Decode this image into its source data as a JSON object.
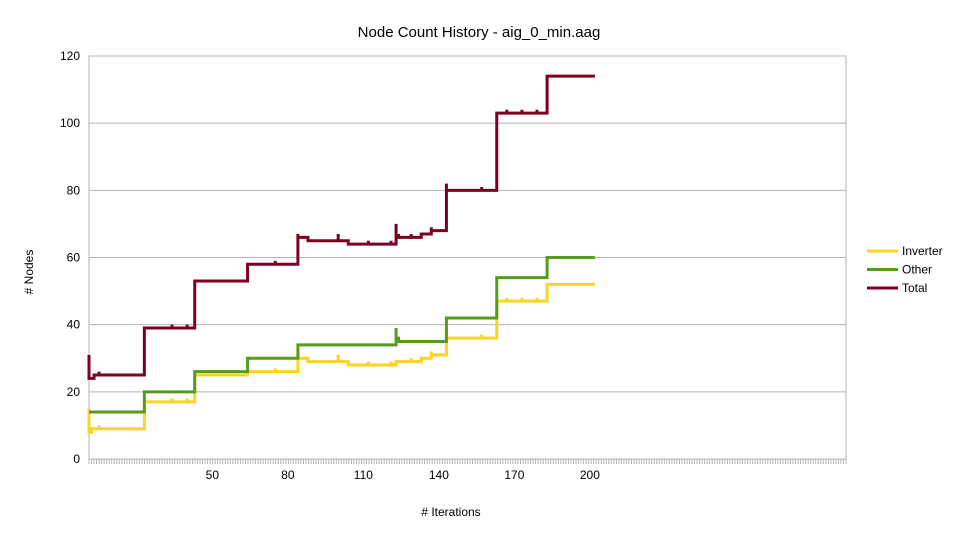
{
  "chart_data": {
    "type": "line",
    "title": "Node Count History  -  aig_0_min.aag",
    "xlabel": "# Iterations",
    "ylabel": "# Nodes",
    "xlim": [
      1,
      201
    ],
    "ylim": [
      0,
      120
    ],
    "x_tick_labels": [
      50,
      80,
      110,
      140,
      170,
      200
    ],
    "y_tick_labels": [
      0,
      20,
      40,
      60,
      80,
      100,
      120
    ],
    "grid": "horizontal",
    "legend_position": "right",
    "step": true,
    "series": [
      {
        "name": "Inverter",
        "color": "#ffd320",
        "points": [
          [
            1,
            15
          ],
          [
            1,
            8
          ],
          [
            2,
            8
          ],
          [
            2,
            9
          ],
          [
            5,
            9
          ],
          [
            5,
            10
          ],
          [
            5,
            9
          ],
          [
            23,
            9
          ],
          [
            23,
            17
          ],
          [
            34,
            17
          ],
          [
            34,
            18
          ],
          [
            34,
            17
          ],
          [
            40,
            17
          ],
          [
            40,
            18
          ],
          [
            40,
            17
          ],
          [
            43,
            17
          ],
          [
            43,
            25
          ],
          [
            64,
            25
          ],
          [
            64,
            26
          ],
          [
            75,
            26
          ],
          [
            75,
            27
          ],
          [
            75,
            26
          ],
          [
            84,
            26
          ],
          [
            84,
            31
          ],
          [
            84,
            30
          ],
          [
            88,
            30
          ],
          [
            88,
            29
          ],
          [
            100,
            29
          ],
          [
            100,
            31
          ],
          [
            100,
            29
          ],
          [
            104,
            29
          ],
          [
            104,
            28
          ],
          [
            112,
            28
          ],
          [
            112,
            29
          ],
          [
            112,
            28
          ],
          [
            121,
            28
          ],
          [
            121,
            29
          ],
          [
            121,
            28
          ],
          [
            123,
            28
          ],
          [
            123,
            29
          ],
          [
            129,
            29
          ],
          [
            129,
            30
          ],
          [
            129,
            29
          ],
          [
            133,
            29
          ],
          [
            133,
            30
          ],
          [
            137,
            30
          ],
          [
            137,
            32
          ],
          [
            137,
            31
          ],
          [
            143,
            31
          ],
          [
            143,
            38
          ],
          [
            143,
            36
          ],
          [
            157,
            36
          ],
          [
            157,
            37
          ],
          [
            157,
            36
          ],
          [
            163,
            36
          ],
          [
            163,
            47
          ],
          [
            167,
            47
          ],
          [
            167,
            48
          ],
          [
            167,
            47
          ],
          [
            173,
            47
          ],
          [
            173,
            48
          ],
          [
            173,
            47
          ],
          [
            179,
            47
          ],
          [
            179,
            48
          ],
          [
            179,
            47
          ],
          [
            183,
            47
          ],
          [
            183,
            52
          ],
          [
            202,
            52
          ]
        ]
      },
      {
        "name": "Other",
        "color": "#579d1c",
        "points": [
          [
            1,
            14
          ],
          [
            23,
            14
          ],
          [
            23,
            20
          ],
          [
            43,
            20
          ],
          [
            43,
            26
          ],
          [
            64,
            26
          ],
          [
            64,
            30
          ],
          [
            84,
            30
          ],
          [
            84,
            34
          ],
          [
            123,
            34
          ],
          [
            123,
            39
          ],
          [
            123,
            36
          ],
          [
            124,
            36
          ],
          [
            124,
            35
          ],
          [
            143,
            35
          ],
          [
            143,
            42
          ],
          [
            163,
            42
          ],
          [
            163,
            54
          ],
          [
            183,
            54
          ],
          [
            183,
            60
          ],
          [
            202,
            60
          ]
        ]
      },
      {
        "name": "Total",
        "color": "#7e0021",
        "points": [
          [
            1,
            31
          ],
          [
            1,
            24
          ],
          [
            3,
            24
          ],
          [
            3,
            25
          ],
          [
            5,
            25
          ],
          [
            5,
            26
          ],
          [
            5,
            25
          ],
          [
            23,
            25
          ],
          [
            23,
            39
          ],
          [
            34,
            39
          ],
          [
            34,
            40
          ],
          [
            34,
            39
          ],
          [
            40,
            39
          ],
          [
            40,
            40
          ],
          [
            40,
            39
          ],
          [
            43,
            39
          ],
          [
            43,
            53
          ],
          [
            64,
            53
          ],
          [
            64,
            58
          ],
          [
            75,
            58
          ],
          [
            75,
            59
          ],
          [
            75,
            58
          ],
          [
            84,
            58
          ],
          [
            84,
            67
          ],
          [
            84,
            66
          ],
          [
            88,
            66
          ],
          [
            88,
            65
          ],
          [
            100,
            65
          ],
          [
            100,
            67
          ],
          [
            100,
            65
          ],
          [
            104,
            65
          ],
          [
            104,
            64
          ],
          [
            112,
            64
          ],
          [
            112,
            65
          ],
          [
            112,
            64
          ],
          [
            121,
            64
          ],
          [
            121,
            65
          ],
          [
            121,
            64
          ],
          [
            123,
            64
          ],
          [
            123,
            70
          ],
          [
            123,
            66
          ],
          [
            124,
            66
          ],
          [
            124,
            67
          ],
          [
            124,
            66
          ],
          [
            129,
            66
          ],
          [
            129,
            67
          ],
          [
            129,
            66
          ],
          [
            133,
            66
          ],
          [
            133,
            67
          ],
          [
            137,
            67
          ],
          [
            137,
            69
          ],
          [
            137,
            68
          ],
          [
            143,
            68
          ],
          [
            143,
            82
          ],
          [
            143,
            80
          ],
          [
            157,
            80
          ],
          [
            157,
            81
          ],
          [
            157,
            80
          ],
          [
            163,
            80
          ],
          [
            163,
            103
          ],
          [
            167,
            103
          ],
          [
            167,
            104
          ],
          [
            167,
            103
          ],
          [
            173,
            103
          ],
          [
            173,
            104
          ],
          [
            173,
            103
          ],
          [
            179,
            103
          ],
          [
            179,
            104
          ],
          [
            179,
            103
          ],
          [
            183,
            103
          ],
          [
            183,
            114
          ],
          [
            202,
            114
          ]
        ]
      }
    ]
  }
}
